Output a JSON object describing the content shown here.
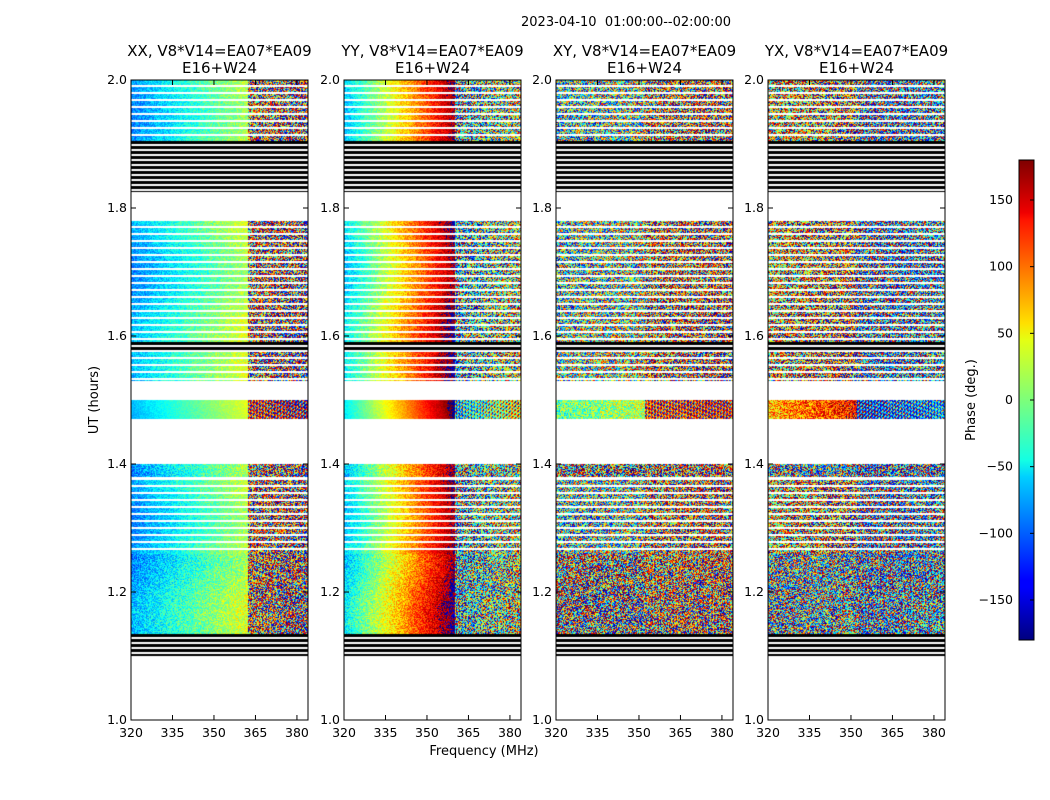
{
  "figure": {
    "super_title": "2023-04-10  01:00:00--02:00:00",
    "xlabel": "Frequency (MHz)",
    "ylabel": "UT (hours)",
    "colorbar_label": "Phase (deg.)"
  },
  "chart_data": {
    "type": "heatmap",
    "measure": "phase",
    "unit": "deg.",
    "x_range_mhz": [
      320,
      384
    ],
    "y_range_hours": [
      1.0,
      2.0
    ],
    "x_ticks": [
      320,
      335,
      350,
      365,
      380
    ],
    "x_tick_labels": [
      "320",
      "335",
      "350",
      "365",
      "380"
    ],
    "y_ticks": [
      1.0,
      1.2,
      1.4,
      1.6,
      1.8,
      2.0
    ],
    "y_tick_labels": [
      "1.0",
      "1.2",
      "1.4",
      "1.6",
      "1.8",
      "2.0"
    ],
    "colorbar": {
      "colormap": "jet",
      "range": [
        -180,
        180
      ],
      "ticks": [
        150,
        100,
        50,
        0,
        -50,
        -100,
        -150
      ],
      "tick_labels": [
        "150",
        "100",
        "50",
        "0",
        "−50",
        "−100",
        "−150"
      ]
    },
    "flagged_blocks_hours": [
      [
        1.1,
        1.135
      ],
      [
        1.575,
        1.59
      ],
      [
        1.825,
        1.905
      ]
    ],
    "data_blocks_hours": [
      {
        "range": [
          1.135,
          1.26
        ],
        "style": "dense"
      },
      {
        "range": [
          1.26,
          1.375
        ],
        "style": "striped"
      },
      {
        "range": [
          1.38,
          1.4
        ],
        "style": "dense"
      },
      {
        "range": [
          1.47,
          1.5
        ],
        "style": "band"
      },
      {
        "range": [
          1.53,
          1.575
        ],
        "style": "striped"
      },
      {
        "range": [
          1.59,
          1.78
        ],
        "style": "striped"
      },
      {
        "range": [
          1.905,
          2.0
        ],
        "style": "striped"
      }
    ],
    "panels": [
      {
        "title_line1": "XX, V8*V14=EA07*EA09",
        "title_line2": "E16+W24",
        "base_phase_deg": -80,
        "phase_slope_deg_per_mhz": 2.5,
        "coherence": 0.85,
        "wrap_start_mhz": 362
      },
      {
        "title_line1": "YY, V8*V14=EA07*EA09",
        "title_line2": "E16+W24",
        "base_phase_deg": -60,
        "phase_slope_deg_per_mhz": 6.0,
        "coherence": 0.85,
        "wrap_start_mhz": 360
      },
      {
        "title_line1": "XY, V8*V14=EA07*EA09",
        "title_line2": "E16+W24",
        "base_phase_deg": -20,
        "phase_slope_deg_per_mhz": 1.0,
        "coherence": 0.15,
        "wrap_start_mhz": 352
      },
      {
        "title_line1": "YX, V8*V14=EA07*EA09",
        "title_line2": "E16+W24",
        "base_phase_deg": 60,
        "phase_slope_deg_per_mhz": 2.0,
        "coherence": 0.15,
        "wrap_start_mhz": 352
      }
    ]
  }
}
